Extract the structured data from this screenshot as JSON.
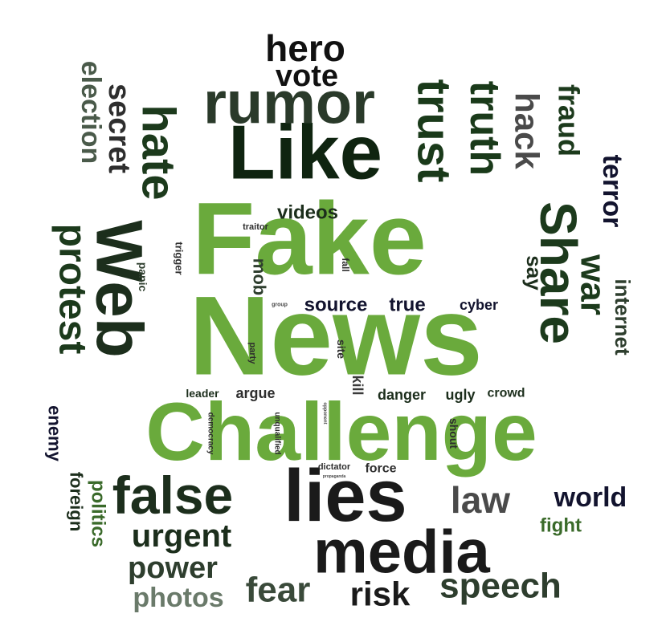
{
  "words": [
    {
      "text": "Fake",
      "color": "#6aaa3c"
    },
    {
      "text": "News",
      "color": "#6aaa3c"
    },
    {
      "text": "Challenge",
      "color": "#6aaa3c"
    },
    {
      "text": "Like",
      "color": "#0f2410"
    },
    {
      "text": "lies",
      "color": "#1a1a1a"
    },
    {
      "text": "media",
      "color": "#1a1a1a"
    },
    {
      "text": "false",
      "color": "#1c2e1c"
    },
    {
      "text": "rumor",
      "color": "#2a3a2a"
    },
    {
      "text": "Web",
      "color": "#1c2e1c"
    },
    {
      "text": "Share",
      "color": "#1c3a1c"
    },
    {
      "text": "hate",
      "color": "#1c3a1c"
    },
    {
      "text": "trust",
      "color": "#1a3a1a"
    },
    {
      "text": "truth",
      "color": "#1a3a1a"
    },
    {
      "text": "protest",
      "color": "#1c3a1c"
    },
    {
      "text": "hero",
      "color": "#111111"
    },
    {
      "text": "vote",
      "color": "#111111"
    },
    {
      "text": "hack",
      "color": "#4a4a4a"
    },
    {
      "text": "war",
      "color": "#1c3a1c"
    },
    {
      "text": "fraud",
      "color": "#1c3a1c"
    },
    {
      "text": "terror",
      "color": "#12132e"
    },
    {
      "text": "secret",
      "color": "#2e2e2e"
    },
    {
      "text": "election",
      "color": "#4a5a4a"
    },
    {
      "text": "law",
      "color": "#4a4a4a"
    },
    {
      "text": "world",
      "color": "#12132e"
    },
    {
      "text": "urgent",
      "color": "#1c2e1c"
    },
    {
      "text": "power",
      "color": "#2e3e2e"
    },
    {
      "text": "photos",
      "color": "#6a7a6a"
    },
    {
      "text": "fear",
      "color": "#3a4a3a"
    },
    {
      "text": "risk",
      "color": "#1a1a1a"
    },
    {
      "text": "speech",
      "color": "#2e3e2e"
    },
    {
      "text": "source",
      "color": "#12132e"
    },
    {
      "text": "true",
      "color": "#12132e"
    },
    {
      "text": "videos",
      "color": "#1c2e1c"
    },
    {
      "text": "say",
      "color": "#1c2e1c"
    },
    {
      "text": "internet",
      "color": "#2e3e2e"
    },
    {
      "text": "fight",
      "color": "#3a6a2a"
    },
    {
      "text": "politics",
      "color": "#3a6a2a"
    },
    {
      "text": "foreign",
      "color": "#1c2e1c"
    },
    {
      "text": "enemy",
      "color": "#12132e"
    },
    {
      "text": "mob",
      "color": "#2e3e2e"
    },
    {
      "text": "cyber",
      "color": "#12132e"
    },
    {
      "text": "danger",
      "color": "#1c2e1c"
    },
    {
      "text": "ugly",
      "color": "#1c2e1c"
    },
    {
      "text": "crowd",
      "color": "#1c2e1c"
    },
    {
      "text": "argue",
      "color": "#2e2e2e"
    },
    {
      "text": "leader",
      "color": "#1c2e1c"
    },
    {
      "text": "kill",
      "color": "#3a3a3a"
    },
    {
      "text": "site",
      "color": "#2e2e2e"
    },
    {
      "text": "force",
      "color": "#2e2e2e"
    },
    {
      "text": "dictator",
      "color": "#2e2e2e"
    },
    {
      "text": "shout",
      "color": "#2e2e2e"
    },
    {
      "text": "panic",
      "color": "#2e3e2e"
    },
    {
      "text": "trigger",
      "color": "#2e2e2e"
    },
    {
      "text": "traitor",
      "color": "#2e2e2e"
    },
    {
      "text": "fall",
      "color": "#2e2e2e"
    },
    {
      "text": "party",
      "color": "#2e2e2e"
    },
    {
      "text": "democracy",
      "color": "#2e2e2e"
    },
    {
      "text": "unqualified",
      "color": "#2e2e2e"
    },
    {
      "text": "opponent",
      "color": "#4a4a4a"
    },
    {
      "text": "group",
      "color": "#4a4a4a"
    },
    {
      "text": "propaganda",
      "color": "#4a4a4a"
    }
  ]
}
